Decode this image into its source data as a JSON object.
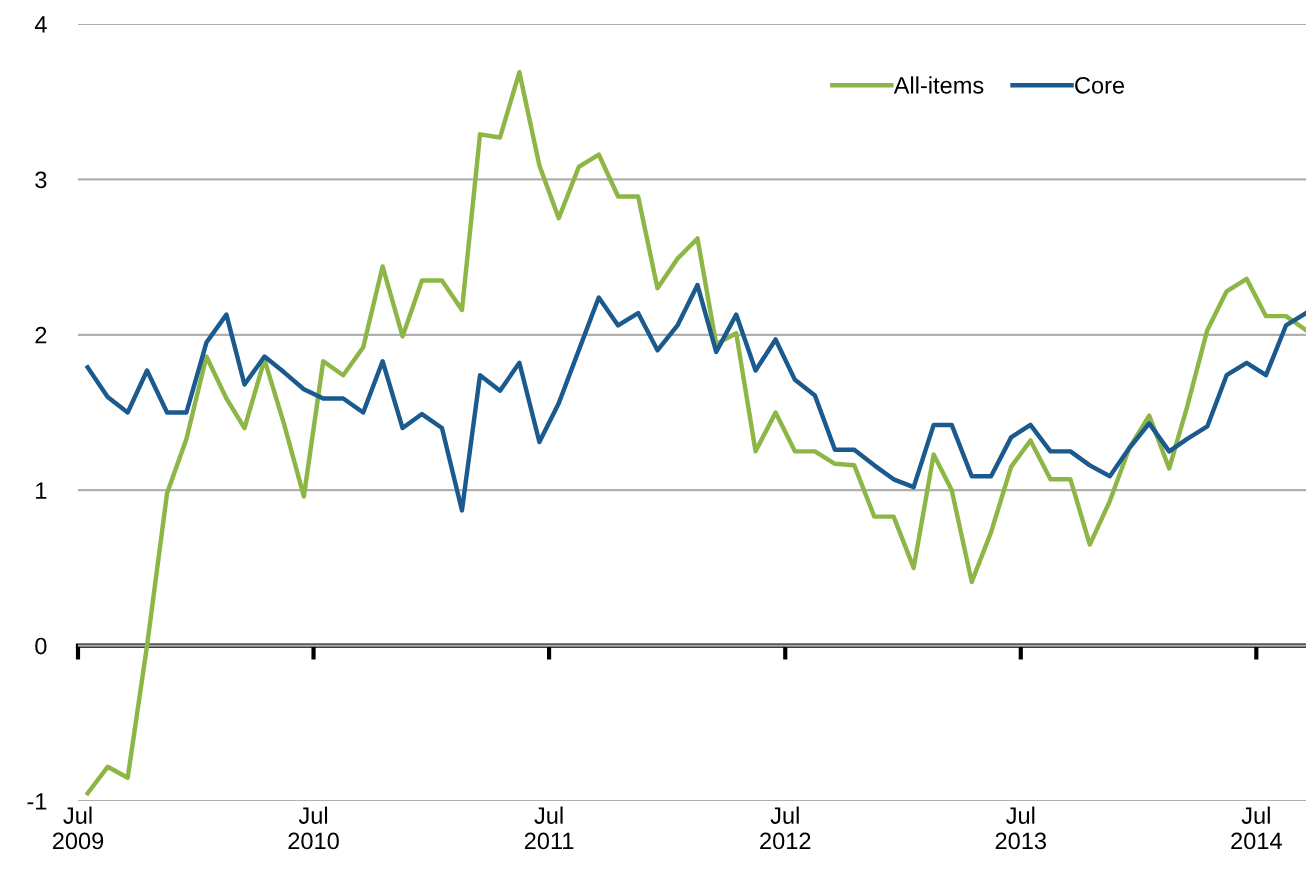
{
  "chart_data": {
    "type": "line",
    "x": [
      "2009-07-16",
      "2009-08-16",
      "2009-09-16",
      "2009-10-16",
      "2009-11-16",
      "2009-12-16",
      "2010-01-16",
      "2010-02-16",
      "2010-03-16",
      "2010-04-16",
      "2010-05-16",
      "2010-06-16",
      "2010-07-16",
      "2010-08-16",
      "2010-09-16",
      "2010-10-16",
      "2010-11-16",
      "2010-12-16",
      "2011-01-16",
      "2011-02-16",
      "2011-03-16",
      "2011-04-16",
      "2011-05-16",
      "2011-06-16",
      "2011-07-16",
      "2011-08-16",
      "2011-09-16",
      "2011-10-16",
      "2011-11-16",
      "2011-12-16",
      "2012-01-16",
      "2012-02-16",
      "2012-03-16",
      "2012-04-16",
      "2012-05-16",
      "2012-06-16",
      "2012-07-16",
      "2012-08-16",
      "2012-09-16",
      "2012-10-16",
      "2012-11-16",
      "2012-12-16",
      "2013-01-16",
      "2013-02-16",
      "2013-03-16",
      "2013-04-16",
      "2013-05-16",
      "2013-06-16",
      "2013-07-16",
      "2013-08-16",
      "2013-09-16",
      "2013-10-16",
      "2013-11-16",
      "2013-12-16",
      "2014-01-16",
      "2014-02-16",
      "2014-03-16",
      "2014-04-16",
      "2014-05-16",
      "2014-06-16",
      "2014-07-16",
      "2014-08-16",
      "2014-09-16"
    ],
    "series": [
      {
        "name": "All-items",
        "color": "#8db646",
        "values": [
          -0.95,
          -0.78,
          -0.85,
          0.0,
          0.98,
          1.33,
          1.86,
          1.59,
          1.4,
          1.84,
          1.43,
          0.96,
          1.83,
          1.74,
          1.92,
          2.44,
          1.99,
          2.35,
          2.35,
          2.16,
          3.29,
          3.27,
          3.69,
          3.09,
          2.75,
          3.08,
          3.16,
          2.89,
          2.89,
          2.3,
          2.49,
          2.62,
          1.94,
          2.01,
          1.25,
          1.5,
          1.25,
          1.25,
          1.17,
          1.16,
          0.83,
          0.83,
          0.5,
          1.23,
          1.0,
          0.41,
          0.73,
          1.15,
          1.32,
          1.07,
          1.07,
          0.65,
          0.93,
          1.27,
          1.48,
          1.14,
          1.54,
          2.03,
          2.28,
          2.36,
          2.12,
          2.12,
          2.03
        ]
      },
      {
        "name": "Core",
        "color": "#1b5a8e",
        "values": [
          1.79,
          1.6,
          1.5,
          1.77,
          1.5,
          1.5,
          1.95,
          2.13,
          1.68,
          1.86,
          1.76,
          1.65,
          1.59,
          1.59,
          1.5,
          1.83,
          1.4,
          1.49,
          1.4,
          0.87,
          1.74,
          1.64,
          1.82,
          1.31,
          1.56,
          1.9,
          2.24,
          2.06,
          2.14,
          1.9,
          2.06,
          2.32,
          1.89,
          2.13,
          1.77,
          1.97,
          1.71,
          1.61,
          1.26,
          1.26,
          1.16,
          1.07,
          1.02,
          1.42,
          1.42,
          1.09,
          1.09,
          1.34,
          1.42,
          1.25,
          1.25,
          1.16,
          1.09,
          1.27,
          1.43,
          1.25,
          1.33,
          1.41,
          1.74,
          1.82,
          1.74,
          2.06,
          2.14
        ]
      }
    ],
    "xlim": [
      "2009-07-01",
      "2014-09-16"
    ],
    "xticks": [
      {
        "value": "2009-07-01",
        "label": "Jul\n2009"
      },
      {
        "value": "2010-07-01",
        "label": "Jul\n2010"
      },
      {
        "value": "2011-07-01",
        "label": "Jul\n2011"
      },
      {
        "value": "2012-07-01",
        "label": "Jul\n2012"
      },
      {
        "value": "2013-07-01",
        "label": "Jul\n2013"
      },
      {
        "value": "2014-07-01",
        "label": "Jul\n2014"
      }
    ],
    "ylim": [
      -1,
      4
    ],
    "yticks": [
      -1,
      0,
      1,
      2,
      3,
      4
    ],
    "ref_lines": [
      {
        "axis": "y",
        "value": 0,
        "color": "#000000"
      }
    ],
    "grid": "y",
    "legend": "top right",
    "marker": "none",
    "line_style": "solid"
  }
}
